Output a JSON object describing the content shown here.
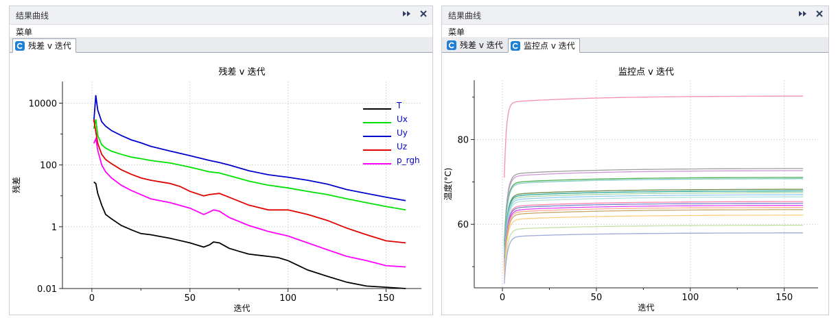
{
  "panels": [
    {
      "title": "结果曲线",
      "menu": "菜单",
      "tabs": [
        {
          "label": "残差 v 迭代",
          "active": true,
          "icon": "residual-chart-icon"
        }
      ]
    },
    {
      "title": "结果曲线",
      "menu": "菜单",
      "tabs": [
        {
          "label": "残差 v 迭代",
          "active": false,
          "icon": "residual-chart-icon"
        },
        {
          "label": "监控点 v 迭代",
          "active": true,
          "icon": "monitor-chart-icon"
        }
      ]
    }
  ],
  "titlebar_icons": [
    "expand-icon",
    "close-icon"
  ],
  "chart_data": [
    {
      "type": "line",
      "title": "残差 v 迭代",
      "xlabel": "迭代",
      "ylabel": "残差",
      "yscale": "log",
      "xlim": [
        -15,
        168
      ],
      "ylim": [
        0.01,
        50000
      ],
      "xticks": [
        0,
        50,
        100,
        150
      ],
      "yticks": [
        0.01,
        1,
        100,
        10000
      ],
      "ytick_labels": [
        "0.01",
        "1",
        "100",
        "10000"
      ],
      "grid": true,
      "legend": "top-right",
      "series": [
        {
          "name": "T",
          "color": "#000000",
          "x": [
            1,
            2,
            3,
            5,
            7,
            10,
            15,
            20,
            25,
            30,
            40,
            50,
            57,
            60,
            62,
            65,
            70,
            75,
            80,
            90,
            95,
            100,
            110,
            120,
            130,
            140,
            150,
            160
          ],
          "y": [
            28,
            25,
            12,
            5,
            2.5,
            1.8,
            1.1,
            0.8,
            0.6,
            0.55,
            0.42,
            0.3,
            0.22,
            0.26,
            0.32,
            0.3,
            0.2,
            0.16,
            0.13,
            0.11,
            0.1,
            0.08,
            0.04,
            0.025,
            0.016,
            0.012,
            0.011,
            0.01
          ]
        },
        {
          "name": "Ux",
          "color": "#00e000",
          "x": [
            1,
            2,
            3,
            5,
            7,
            10,
            15,
            20,
            25,
            30,
            40,
            50,
            60,
            65,
            70,
            80,
            90,
            100,
            110,
            120,
            130,
            140,
            150,
            160
          ],
          "y": [
            1500,
            3000,
            900,
            450,
            350,
            280,
            220,
            180,
            160,
            140,
            115,
            85,
            60,
            55,
            45,
            30,
            22,
            18,
            14,
            11,
            8,
            6,
            4.5,
            3.5
          ]
        },
        {
          "name": "Uy",
          "color": "#0000cc",
          "x": [
            1,
            2,
            3,
            5,
            7,
            10,
            15,
            20,
            25,
            30,
            40,
            50,
            60,
            65,
            70,
            80,
            90,
            100,
            110,
            120,
            130,
            140,
            150,
            160
          ],
          "y": [
            2500,
            18000,
            6000,
            2500,
            1800,
            1300,
            900,
            650,
            520,
            400,
            280,
            200,
            140,
            120,
            100,
            65,
            48,
            40,
            32,
            24,
            16,
            12,
            9,
            7
          ]
        },
        {
          "name": "Uz",
          "color": "#e00000",
          "x": [
            1,
            2,
            3,
            5,
            7,
            10,
            15,
            20,
            25,
            30,
            40,
            45,
            50,
            57,
            60,
            65,
            70,
            80,
            90,
            100,
            110,
            120,
            130,
            140,
            150,
            160
          ],
          "y": [
            3000,
            1200,
            500,
            220,
            150,
            110,
            70,
            50,
            38,
            32,
            25,
            20,
            14,
            10,
            11,
            12,
            9,
            5,
            3.5,
            3.5,
            2.5,
            1.6,
            0.9,
            0.55,
            0.35,
            0.3
          ]
        },
        {
          "name": "p_rgh",
          "color": "#ff00ff",
          "x": [
            1,
            2,
            3,
            5,
            7,
            10,
            15,
            20,
            25,
            30,
            40,
            50,
            57,
            60,
            62,
            65,
            70,
            80,
            90,
            100,
            110,
            120,
            130,
            140,
            150,
            160
          ],
          "y": [
            500,
            700,
            300,
            100,
            60,
            38,
            22,
            15,
            11,
            8,
            6,
            4,
            2.5,
            3,
            3.5,
            3.2,
            2,
            1.1,
            0.7,
            0.5,
            0.3,
            0.18,
            0.11,
            0.08,
            0.055,
            0.05
          ]
        }
      ]
    },
    {
      "type": "line",
      "title": "监控点 v 迭代",
      "xlabel": "迭代",
      "ylabel": "温度(°C)",
      "xlim": [
        -15,
        168
      ],
      "ylim": [
        45,
        94
      ],
      "xticks": [
        0,
        50,
        100,
        150
      ],
      "yticks": [
        60,
        80
      ],
      "grid": true,
      "series": [
        {
          "color": "#f48fb1",
          "y0": 71,
          "yend": 90.3
        },
        {
          "color": "#9e9e9e",
          "y0": 56,
          "yend": 73.2
        },
        {
          "color": "#ce93d8",
          "y0": 55,
          "yend": 72.7
        },
        {
          "color": "#4caf50",
          "y0": 55,
          "yend": 71.1
        },
        {
          "color": "#80cbc4",
          "y0": 54,
          "yend": 70.8
        },
        {
          "color": "#6d8b4a",
          "y0": 52,
          "yend": 68.3
        },
        {
          "color": "#26a69a",
          "y0": 52,
          "yend": 67.9
        },
        {
          "color": "#a5d6a7",
          "y0": 51,
          "yend": 67.5
        },
        {
          "color": "#90caf9",
          "y0": 51,
          "yend": 67.0
        },
        {
          "color": "#b2dfdb",
          "y0": 50,
          "yend": 66.5
        },
        {
          "color": "#ff80ab",
          "y0": 50,
          "yend": 65.4
        },
        {
          "color": "#7986cb",
          "y0": 50,
          "yend": 65.0
        },
        {
          "color": "#e040fb",
          "y0": 49,
          "yend": 64.5
        },
        {
          "color": "#ffab91",
          "y0": 49,
          "yend": 64.0
        },
        {
          "color": "#c5a76a",
          "y0": 48,
          "yend": 63.5
        },
        {
          "color": "#ffcc80",
          "y0": 48,
          "yend": 62.2
        },
        {
          "color": "#c5e1a5",
          "y0": 47,
          "yend": 59.8
        },
        {
          "color": "#9fa8da",
          "y0": 46,
          "yend": 58.0
        }
      ]
    }
  ]
}
